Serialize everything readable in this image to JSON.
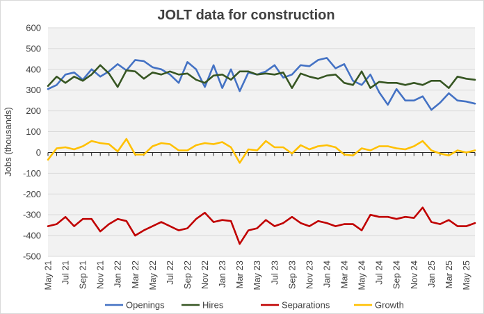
{
  "chart_data": {
    "type": "line",
    "title": "JOLT data for construction",
    "xlabel": "",
    "ylabel": "Jobs (thousands)",
    "ylim": [
      -500,
      600
    ],
    "yticks": [
      600,
      500,
      400,
      300,
      200,
      100,
      0,
      -100,
      -200,
      -300,
      -400,
      -500
    ],
    "grid": true,
    "legend_position": "bottom",
    "tick_labels": [
      "May 21",
      "Jul 21",
      "Sep 21",
      "Nov 21",
      "Jan 22",
      "Mar 22",
      "May 22",
      "Jul 22",
      "Sep 22",
      "Nov 22",
      "Jan 23",
      "Mar 23",
      "May 23",
      "Jul 23",
      "Sep 23",
      "Nov 23",
      "Jan 24",
      "Mar 24",
      "May 24",
      "Jul 24",
      "Sep 24",
      "Nov 24",
      "Jan 25",
      "Mar 25",
      "May 25"
    ],
    "x": [
      "May 21",
      "Jun 21",
      "Jul 21",
      "Aug 21",
      "Sep 21",
      "Oct 21",
      "Nov 21",
      "Dec 21",
      "Jan 22",
      "Feb 22",
      "Mar 22",
      "Apr 22",
      "May 22",
      "Jun 22",
      "Jul 22",
      "Aug 22",
      "Sep 22",
      "Oct 22",
      "Nov 22",
      "Dec 22",
      "Jan 23",
      "Feb 23",
      "Mar 23",
      "Apr 23",
      "May 23",
      "Jun 23",
      "Jul 23",
      "Aug 23",
      "Sep 23",
      "Oct 23",
      "Nov 23",
      "Dec 23",
      "Jan 24",
      "Feb 24",
      "Mar 24",
      "Apr 24",
      "May 24",
      "Jun 24",
      "Jul 24",
      "Aug 24",
      "Sep 24",
      "Oct 24",
      "Nov 24",
      "Dec 24",
      "Jan 25",
      "Feb 25",
      "Mar 25",
      "Apr 25",
      "May 25",
      "Jun 25"
    ],
    "series": [
      {
        "name": "Openings",
        "color": "#4472c4",
        "values": [
          305,
          325,
          375,
          385,
          350,
          400,
          365,
          390,
          425,
          395,
          445,
          440,
          410,
          400,
          375,
          335,
          435,
          400,
          315,
          420,
          310,
          400,
          295,
          385,
          375,
          390,
          420,
          360,
          375,
          420,
          415,
          445,
          455,
          405,
          425,
          345,
          325,
          375,
          290,
          230,
          305,
          250,
          250,
          270,
          205,
          240,
          285,
          250,
          245,
          235
        ]
      },
      {
        "name": "Hires",
        "color": "#375623",
        "values": [
          320,
          365,
          335,
          365,
          345,
          375,
          420,
          380,
          315,
          395,
          390,
          355,
          385,
          375,
          390,
          375,
          380,
          350,
          335,
          370,
          375,
          350,
          390,
          390,
          375,
          380,
          375,
          385,
          310,
          380,
          365,
          355,
          370,
          375,
          335,
          325,
          390,
          310,
          340,
          335,
          335,
          325,
          335,
          325,
          345,
          345,
          310,
          365,
          355,
          350
        ]
      },
      {
        "name": "Separations",
        "color": "#c00000",
        "values": [
          -355,
          -345,
          -310,
          -355,
          -320,
          -320,
          -380,
          -345,
          -320,
          -330,
          -400,
          -375,
          -355,
          -335,
          -355,
          -375,
          -365,
          -320,
          -290,
          -335,
          -325,
          -330,
          -440,
          -375,
          -365,
          -325,
          -355,
          -340,
          -310,
          -340,
          -355,
          -330,
          -340,
          -355,
          -345,
          -345,
          -375,
          -300,
          -310,
          -310,
          -320,
          -310,
          -315,
          -265,
          -335,
          -345,
          -325,
          -355,
          -355,
          -340
        ]
      },
      {
        "name": "Growth",
        "color": "#ffc000",
        "values": [
          -35,
          20,
          25,
          15,
          30,
          55,
          45,
          40,
          5,
          65,
          -10,
          -10,
          30,
          45,
          40,
          10,
          10,
          35,
          45,
          40,
          50,
          25,
          -50,
          15,
          10,
          55,
          25,
          25,
          -5,
          35,
          15,
          30,
          35,
          25,
          -10,
          -15,
          20,
          10,
          30,
          30,
          20,
          15,
          30,
          55,
          10,
          -5,
          -15,
          10,
          0,
          10
        ]
      }
    ]
  }
}
